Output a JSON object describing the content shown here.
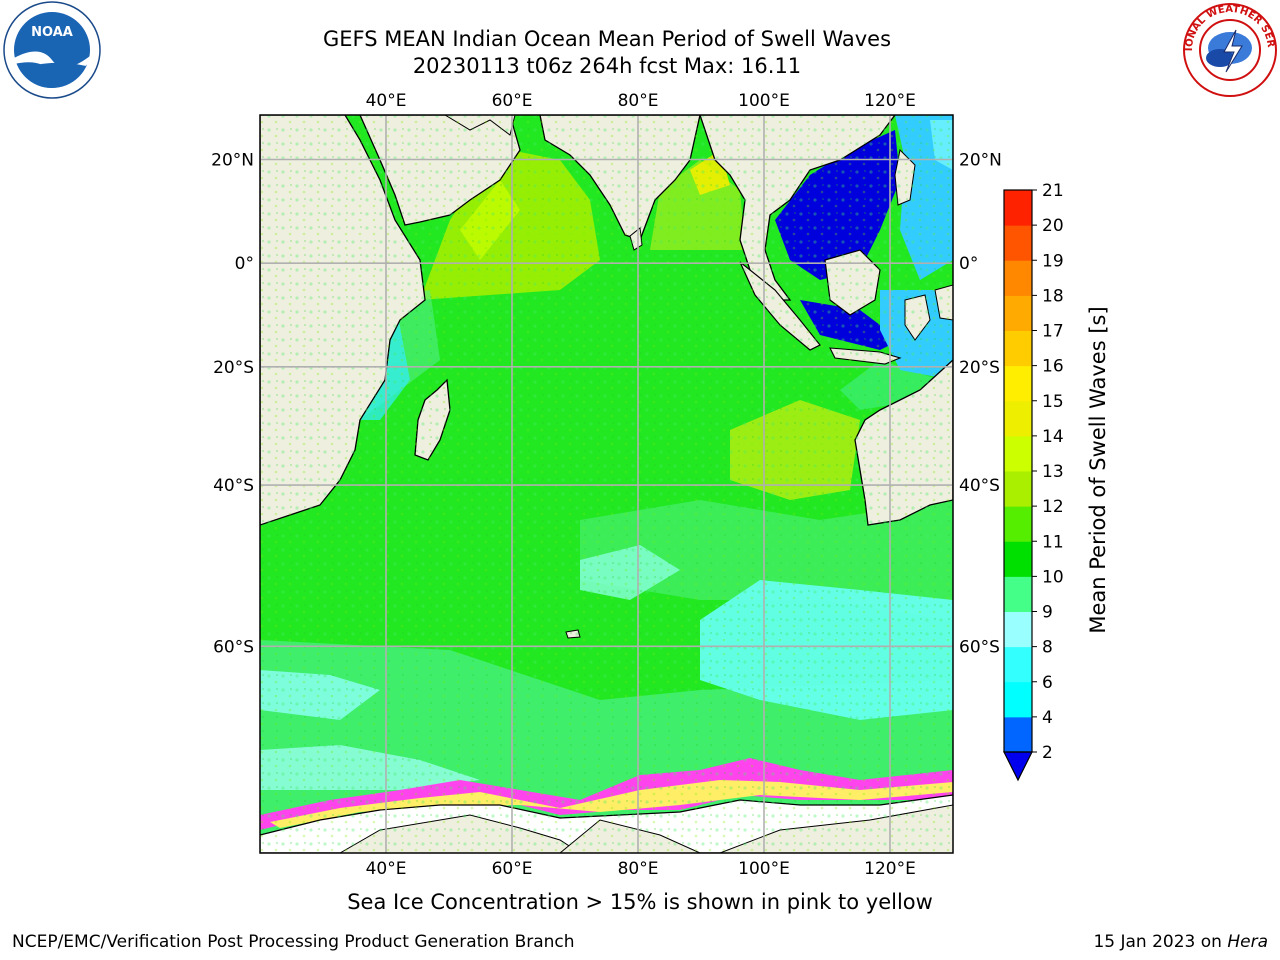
{
  "title": {
    "line1": "GEFS MEAN Indian Ocean Mean Period of Swell Waves",
    "line2": "20230113 t06z 264h fcst   Max: 16.11"
  },
  "map": {
    "lon_range": [
      20,
      130
    ],
    "lat_range": [
      -75,
      28
    ],
    "lon_ticks": [
      "40°E",
      "60°E",
      "80°E",
      "100°E",
      "120°E"
    ],
    "lat_ticks": [
      "20°N",
      "0°",
      "20°S",
      "40°S",
      "60°S"
    ],
    "lon_tick_values": [
      40,
      60,
      80,
      100,
      120
    ],
    "lat_tick_values": [
      20,
      0,
      -20,
      -40,
      -60
    ],
    "grid": true,
    "land_color": "#efefdf",
    "ocean_dominant_color": "#22e822"
  },
  "colorbar": {
    "label": "Mean Period of Swell Waves [s]",
    "ticks": [
      "2",
      "4",
      "6",
      "8",
      "9",
      "10",
      "11",
      "12",
      "13",
      "14",
      "15",
      "16",
      "17",
      "18",
      "19",
      "20",
      "21"
    ],
    "colors": [
      "#0066ff",
      "#00ffff",
      "#33ffff",
      "#99ffff",
      "#44ff88",
      "#00e000",
      "#55ee00",
      "#aaee00",
      "#ccff00",
      "#eeee00",
      "#ffee00",
      "#ffcc00",
      "#ffaa00",
      "#ff8800",
      "#ff5500",
      "#ff2200"
    ],
    "extend_min_color": "#0000ee"
  },
  "caption": "Sea Ice Concentration > 15% is shown in pink to yellow",
  "footer": {
    "left": "NCEP/EMC/Verification Post Processing Product Generation Branch",
    "right_date": "15 Jan 2023 on",
    "right_machine": "Hera"
  },
  "logos": {
    "left": "noaa-logo",
    "right": "nws-logo",
    "right_text": "NATIONAL WEATHER SERVICE"
  }
}
